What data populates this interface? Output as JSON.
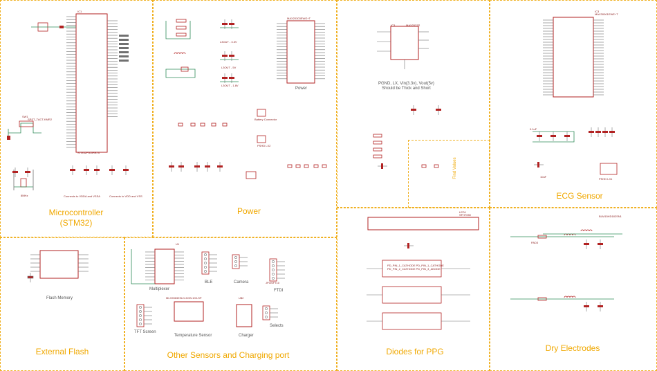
{
  "section_titles": {
    "microcontroller": "Microcontroller\n(STM32)",
    "power": "Power",
    "ecg": "ECG Sensor",
    "external_flash": "External Flash",
    "other_sensors": "Other Sensors and Charging port",
    "diodes_ppg": "Diodes for PPG",
    "dry_electrodes": "Dry Electrodes",
    "find_values": "Find Values"
  },
  "component_labels": {
    "mcu_part": "STM32F303RBT6",
    "mcu_ref": "IC1",
    "power_part": "MAX20303EWG+T",
    "power_caption": "Power",
    "boost_ic": "IC3",
    "boost_part": "MAX2037S",
    "boost_note": "PGND, LX, Vin(3.3v), Vout(5v)\nShould be Thick and Short",
    "ecg_ic": "IC3",
    "ecg_part": "MAX30001EWE+T",
    "led_ref": "LED1",
    "led_part": "SFH7050",
    "flash_caption": "Flash Memory",
    "mux_caption": "Multiplexer",
    "mux_ref": "U1",
    "ble_caption": "BLE",
    "camera_caption": "Camera",
    "ftdi_caption": "FTDI",
    "ftdi_part": "JP3/SFT10",
    "tft_caption": "TFT Screen",
    "temp_caption": "Temperature Sensor",
    "temp_part": "MLX90632SLD-DCB-100-SP",
    "charger_caption": "Charger",
    "charger_ref": "U$2",
    "selects_caption": "Selects",
    "battery_caption": "Battery Connector",
    "pshd_caption": "PSHD LX2",
    "crystal_caption": "8MHz",
    "connector_note_a": "Connects to VDDA and VSSA",
    "connector_note_b": "Connects to VDD and VSS",
    "l_out_33": "L3OUT - 3.3V",
    "l_out_5": "L3OUT - 5V",
    "l_out_18": "L3OUT - 1.8V",
    "cap_01": "0.1uF",
    "cap_10": "10uF",
    "cap_47": "4.7uF",
    "pad_label": "PAD3",
    "ecg_inductor": "BLM15HD182SN1",
    "pshd_mid": "PSHD LX1",
    "switch_label": "SW1",
    "switch_part": "SPST_TACT-KMR2",
    "ppg_pins": "PD_PIN_1_CATHODE  PD_PIN_1_CATHODE\nPD_PIN_2_CATHODE  PD_PIN_3_ANODE"
  },
  "colors": {
    "frame": "#f0b020",
    "title": "#f0a800",
    "component": "#b22222",
    "wire": "#2e8b57",
    "net": "#707070"
  }
}
